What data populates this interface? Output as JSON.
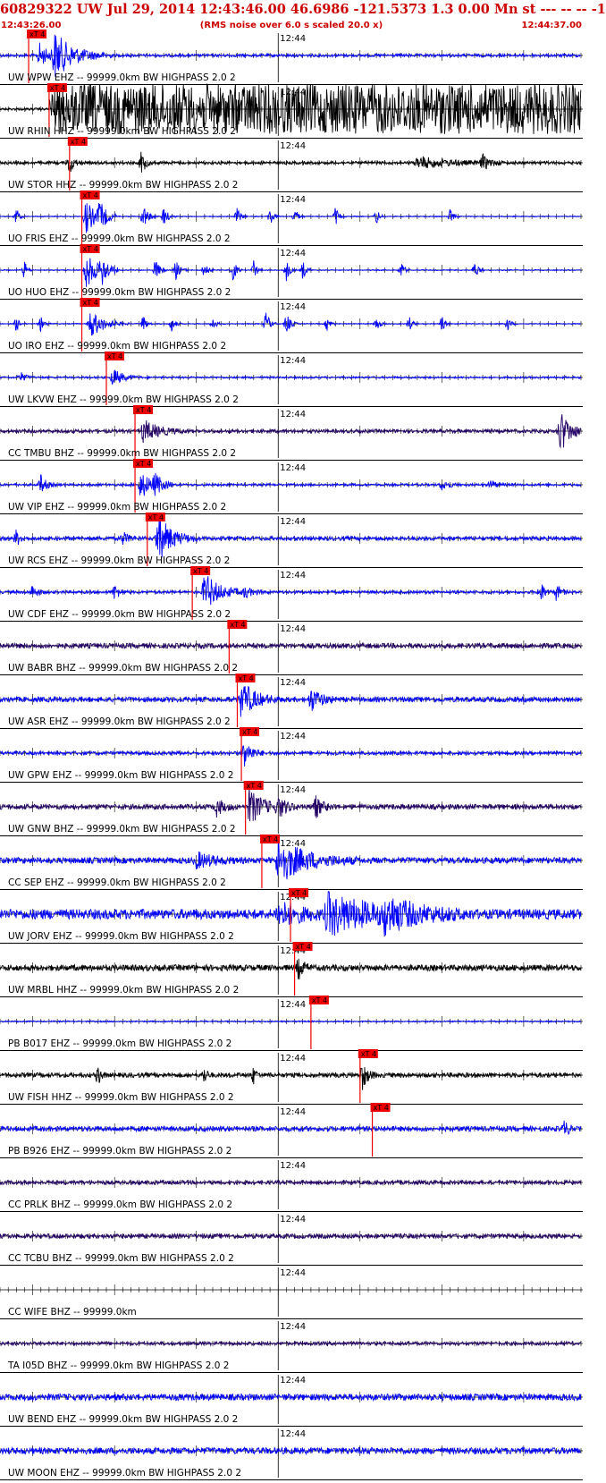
{
  "header": {
    "title": "60829322 UW Jul 29, 2014 12:43:46.00   46.6986 -121.5373  1.3 0.00 Mn st --- -- --  -1",
    "start_time": "12:43:26.00",
    "scaling_note": "(RMS noise over 6.0 s scaled 20.0 x)",
    "end_time": "12:44:37.00",
    "color": "#cc0000"
  },
  "chart_data": {
    "type": "seismogram",
    "time_window": {
      "start": "12:43:26.00",
      "end": "12:44:37.00",
      "duration_s": 71
    },
    "minute_marker": {
      "label": "12:44",
      "t": 34
    },
    "pick_label": "xT 4",
    "tick_interval_s": 1,
    "traces": [
      {
        "label": "UW WPW EHZ -- 99999.0km BW  HIGHPASS  2.0  2",
        "color": "#0000ff",
        "pick": 3.5,
        "noise": 0.06,
        "events": [
          {
            "t": 6.6,
            "a": 0.9,
            "w": 2.4
          },
          {
            "t": 4.8,
            "a": 0.5,
            "w": 1.0
          }
        ]
      },
      {
        "label": "UW RHIN HHZ -- 99999.0km BW  HIGHPASS  2.0  2",
        "color": "#000000",
        "pick": 6.0,
        "noise": 0.05,
        "saturated_from": 6.0,
        "events": []
      },
      {
        "label": "UW STOR HHZ -- 99999.0km BW  HIGHPASS  2.0  2",
        "color": "#000000",
        "pick": 8.5,
        "noise": 0.06,
        "events": [
          {
            "t": 8.5,
            "a": 0.45,
            "w": 0.5
          },
          {
            "t": 17.3,
            "a": 0.45,
            "w": 0.5
          },
          {
            "t": 51,
            "a": 0.25,
            "w": 3.5
          },
          {
            "t": 59,
            "a": 0.3,
            "w": 0.8
          }
        ]
      },
      {
        "label": "UO FRIS EHZ -- 99999.0km BW  HIGHPASS  2.0  2",
        "color": "#0000ff",
        "pick": 10.0,
        "noise": 0.02,
        "events": [
          {
            "t": 10.5,
            "a": 0.7,
            "w": 1.2
          },
          {
            "t": 12.2,
            "a": 0.5,
            "w": 0.8
          },
          {
            "t": 2,
            "a": 0.4,
            "w": 0.3
          },
          {
            "t": 17.5,
            "a": 0.5,
            "w": 0.6
          },
          {
            "t": 20,
            "a": 0.4,
            "w": 0.5
          },
          {
            "t": 29,
            "a": 0.35,
            "w": 0.4
          },
          {
            "t": 33,
            "a": 0.4,
            "w": 0.4
          },
          {
            "t": 36,
            "a": 0.35,
            "w": 0.4
          },
          {
            "t": 41,
            "a": 0.35,
            "w": 0.4
          },
          {
            "t": 46,
            "a": 0.3,
            "w": 0.4
          },
          {
            "t": 55,
            "a": 0.3,
            "w": 0.4
          }
        ]
      },
      {
        "label": "UO HUO EHZ -- 99999.0km BW  HIGHPASS  2.0  2",
        "color": "#0000ff",
        "pick": 10.0,
        "noise": 0.02,
        "events": [
          {
            "t": 10.5,
            "a": 0.75,
            "w": 1.4
          },
          {
            "t": 12.5,
            "a": 0.5,
            "w": 0.7
          },
          {
            "t": 3,
            "a": 0.4,
            "w": 0.3
          },
          {
            "t": 19,
            "a": 0.45,
            "w": 0.5
          },
          {
            "t": 21.5,
            "a": 0.4,
            "w": 0.5
          },
          {
            "t": 25,
            "a": 0.35,
            "w": 0.4
          },
          {
            "t": 28.5,
            "a": 0.45,
            "w": 0.4
          },
          {
            "t": 31,
            "a": 0.4,
            "w": 0.4
          },
          {
            "t": 35,
            "a": 0.45,
            "w": 0.4
          },
          {
            "t": 37,
            "a": 0.4,
            "w": 0.4
          },
          {
            "t": 49,
            "a": 0.35,
            "w": 0.4
          },
          {
            "t": 58,
            "a": 0.35,
            "w": 0.4
          }
        ]
      },
      {
        "label": "UO IRO EHZ -- 99999.0km BW  HIGHPASS  2.0  2",
        "color": "#0000ff",
        "pick": 10.0,
        "noise": 0.02,
        "events": [
          {
            "t": 11,
            "a": 0.6,
            "w": 1.6
          },
          {
            "t": 2,
            "a": 0.3,
            "w": 0.4
          },
          {
            "t": 5,
            "a": 0.3,
            "w": 0.4
          },
          {
            "t": 17.5,
            "a": 0.35,
            "w": 0.4
          },
          {
            "t": 21,
            "a": 0.35,
            "w": 0.4
          },
          {
            "t": 26,
            "a": 0.3,
            "w": 0.4
          },
          {
            "t": 32.5,
            "a": 0.45,
            "w": 0.5
          },
          {
            "t": 35,
            "a": 0.4,
            "w": 0.5
          },
          {
            "t": 40,
            "a": 0.3,
            "w": 0.4
          },
          {
            "t": 46,
            "a": 0.3,
            "w": 0.4
          },
          {
            "t": 50,
            "a": 0.3,
            "w": 0.4
          },
          {
            "t": 54,
            "a": 0.3,
            "w": 0.4
          },
          {
            "t": 62,
            "a": 0.3,
            "w": 0.4
          }
        ]
      },
      {
        "label": "UW LKVW EHZ -- 99999.0km BW  HIGHPASS  2.0  2",
        "color": "#0000ff",
        "pick": 13.0,
        "noise": 0.04,
        "events": [
          {
            "t": 13.8,
            "a": 0.35,
            "w": 1.2
          },
          {
            "t": 2.5,
            "a": 0.2,
            "w": 0.6
          }
        ]
      },
      {
        "label": "CC TMBU BHZ -- 99999.0km BW  HIGHPASS  2.0  2",
        "color": "#220066",
        "pick": 16.5,
        "noise": 0.07,
        "events": [
          {
            "t": 17.5,
            "a": 0.45,
            "w": 1.8
          },
          {
            "t": 68.5,
            "a": 0.85,
            "w": 1.2
          }
        ]
      },
      {
        "label": "UW VIP EHZ -- 99999.0km BW  HIGHPASS  2.0  2",
        "color": "#0000ff",
        "pick": 16.5,
        "noise": 0.05,
        "events": [
          {
            "t": 17.2,
            "a": 0.55,
            "w": 1.3
          },
          {
            "t": 5,
            "a": 0.4,
            "w": 0.6
          },
          {
            "t": 19,
            "a": 0.35,
            "w": 0.8
          },
          {
            "t": 54,
            "a": 0.2,
            "w": 0.8
          },
          {
            "t": 60,
            "a": 0.2,
            "w": 0.6
          }
        ]
      },
      {
        "label": "UW RCS EHZ -- 99999.0km BW  HIGHPASS  2.0  2",
        "color": "#0000ff",
        "pick": 18.0,
        "noise": 0.08,
        "events": [
          {
            "t": 19.3,
            "a": 0.95,
            "w": 1.6
          },
          {
            "t": 2,
            "a": 0.3,
            "w": 0.5
          },
          {
            "t": 15,
            "a": 0.25,
            "w": 0.6
          }
        ]
      },
      {
        "label": "UW CDF EHZ -- 99999.0km BW  HIGHPASS  2.0  2",
        "color": "#0000ff",
        "pick": 23.5,
        "noise": 0.06,
        "events": [
          {
            "t": 25,
            "a": 0.75,
            "w": 1.8
          },
          {
            "t": 4,
            "a": 0.3,
            "w": 0.5
          },
          {
            "t": 14,
            "a": 0.3,
            "w": 0.6
          },
          {
            "t": 30,
            "a": 0.2,
            "w": 1.0
          },
          {
            "t": 66,
            "a": 0.45,
            "w": 0.5
          },
          {
            "t": 68,
            "a": 0.35,
            "w": 0.5
          }
        ]
      },
      {
        "label": "UW BABR BHZ -- 99999.0km BW  HIGHPASS  2.0  2",
        "color": "#220066",
        "pick": 28.0,
        "noise": 0.1,
        "events": []
      },
      {
        "label": "UW ASR EHZ -- 99999.0km BW  HIGHPASS  2.0  2",
        "color": "#0000ff",
        "pick": 29.0,
        "noise": 0.1,
        "events": [
          {
            "t": 29.5,
            "a": 0.75,
            "w": 1.6
          },
          {
            "t": 38,
            "a": 0.45,
            "w": 1.2
          }
        ]
      },
      {
        "label": "UW GPW EHZ -- 99999.0km BW  HIGHPASS  2.0  2",
        "color": "#0000ff",
        "pick": 29.5,
        "noise": 0.07,
        "events": [
          {
            "t": 29.8,
            "a": 0.65,
            "w": 0.8
          }
        ]
      },
      {
        "label": "UW GNW BHZ -- 99999.0km BW  HIGHPASS  2.0  2",
        "color": "#220066",
        "pick": 30.0,
        "noise": 0.1,
        "events": [
          {
            "t": 30.5,
            "a": 0.7,
            "w": 1.6
          },
          {
            "t": 26.5,
            "a": 0.35,
            "w": 0.8
          },
          {
            "t": 34,
            "a": 0.35,
            "w": 1.0
          },
          {
            "t": 38.5,
            "a": 0.45,
            "w": 0.8
          }
        ]
      },
      {
        "label": "CC SEP EHZ -- 99999.0km BW  HIGHPASS  2.0  2",
        "color": "#0000ff",
        "pick": 32.0,
        "noise": 0.12,
        "events": [
          {
            "t": 34,
            "a": 0.9,
            "w": 3.2
          },
          {
            "t": 24,
            "a": 0.3,
            "w": 2.0
          }
        ]
      },
      {
        "label": "UW JORV EHZ -- 99999.0km BW  HIGHPASS  2.0  2",
        "color": "#0000ff",
        "pick": 35.5,
        "noise": 0.2,
        "events": [
          {
            "t": 40,
            "a": 0.75,
            "w": 6.0
          },
          {
            "t": 34,
            "a": 0.45,
            "w": 2.5
          },
          {
            "t": 47,
            "a": 0.55,
            "w": 3.0
          }
        ]
      },
      {
        "label": "UW MRBL HHZ -- 99999.0km BW  HIGHPASS  2.0  2",
        "color": "#000000",
        "pick": 36.0,
        "noise": 0.12,
        "events": [
          {
            "t": 36.5,
            "a": 0.4,
            "w": 0.6
          }
        ]
      },
      {
        "label": "PB B017 EHZ -- 99999.0km BW  HIGHPASS  2.0  2",
        "color": "#0000ff",
        "pick": 38.0,
        "noise": 0.03,
        "events": []
      },
      {
        "label": "UW FISH HHZ -- 99999.0km BW  HIGHPASS  2.0  2",
        "color": "#000000",
        "pick": 44.0,
        "noise": 0.09,
        "events": [
          {
            "t": 44.3,
            "a": 0.55,
            "w": 0.6
          },
          {
            "t": 12,
            "a": 0.4,
            "w": 0.3
          },
          {
            "t": 25,
            "a": 0.35,
            "w": 0.3
          },
          {
            "t": 31,
            "a": 0.35,
            "w": 0.3
          }
        ]
      },
      {
        "label": "PB B926 EHZ -- 99999.0km BW  HIGHPASS  2.0  2",
        "color": "#0000ff",
        "pick": 45.5,
        "noise": 0.1,
        "events": [
          {
            "t": 69,
            "a": 0.3,
            "w": 0.5
          }
        ]
      },
      {
        "label": "CC PRLK BHZ -- 99999.0km BW  HIGHPASS  2.0  2",
        "color": "#220066",
        "pick": null,
        "noise": 0.08,
        "events": []
      },
      {
        "label": "CC TCBU BHZ -- 99999.0km BW  HIGHPASS  2.0  2",
        "color": "#220066",
        "pick": null,
        "noise": 0.09,
        "events": []
      },
      {
        "label": "CC WIFE BHZ -- 99999.0km",
        "color": "#0000ff",
        "pick": null,
        "noise": 0.0,
        "events": []
      },
      {
        "label": "TA I05D BHZ -- 99999.0km BW  HIGHPASS  2.0  2",
        "color": "#220066",
        "pick": null,
        "noise": 0.07,
        "events": []
      },
      {
        "label": "UW BEND EHZ -- 99999.0km BW  HIGHPASS  2.0  2",
        "color": "#0000ff",
        "pick": null,
        "noise": 0.13,
        "events": []
      },
      {
        "label": "UW MOON EHZ -- 99999.0km BW  HIGHPASS  2.0  2",
        "color": "#0000ff",
        "pick": null,
        "noise": 0.13,
        "events": []
      }
    ]
  }
}
